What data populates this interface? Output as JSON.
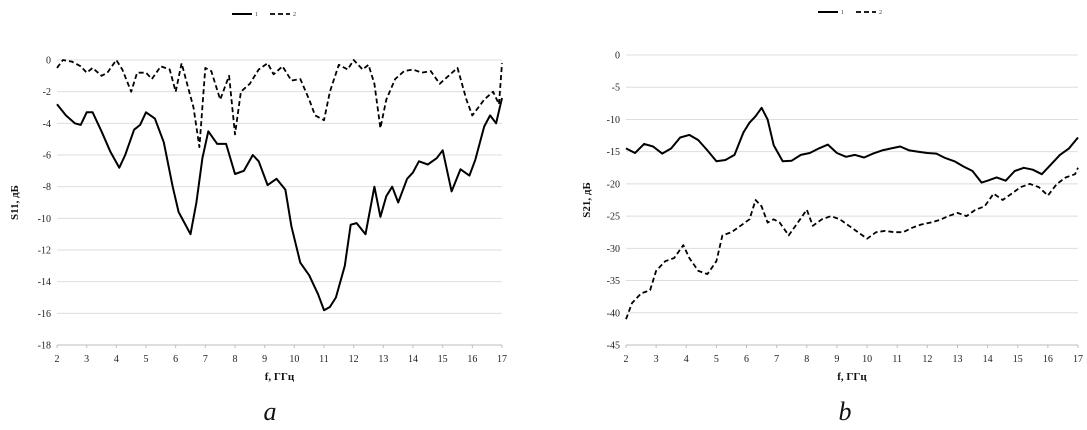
{
  "chart_data": [
    {
      "type": "line",
      "panel_label": "a",
      "xlabel": "f, ГГц",
      "ylabel": "S11, дБ",
      "xlim": [
        2,
        17
      ],
      "ylim": [
        -18,
        0
      ],
      "xticks": [
        "2",
        "3",
        "4",
        "5",
        "6",
        "7",
        "8",
        "9",
        "10",
        "11",
        "12",
        "13",
        "14",
        "15",
        "16",
        "17"
      ],
      "yticks": [
        "0",
        "-2",
        "-4",
        "-6",
        "-8",
        "-10",
        "-12",
        "-14",
        "-16",
        "-18"
      ],
      "grid": true,
      "legend_position": "top",
      "series": [
        {
          "name": "1",
          "style": "solid",
          "x": [
            2.0,
            2.3,
            2.6,
            2.8,
            3.0,
            3.2,
            3.5,
            3.8,
            4.1,
            4.3,
            4.6,
            4.8,
            5.0,
            5.3,
            5.6,
            5.9,
            6.1,
            6.3,
            6.5,
            6.7,
            6.9,
            7.1,
            7.4,
            7.7,
            8.0,
            8.3,
            8.6,
            8.8,
            9.1,
            9.4,
            9.7,
            9.9,
            10.2,
            10.5,
            10.8,
            11.0,
            11.2,
            11.4,
            11.7,
            11.9,
            12.1,
            12.4,
            12.7,
            12.9,
            13.1,
            13.3,
            13.5,
            13.8,
            14.0,
            14.2,
            14.5,
            14.8,
            15.0,
            15.3,
            15.6,
            15.9,
            16.1,
            16.4,
            16.6,
            16.8,
            17.0
          ],
          "values": [
            -2.8,
            -3.5,
            -4.0,
            -4.1,
            -3.3,
            -3.3,
            -4.5,
            -5.8,
            -6.8,
            -6.0,
            -4.4,
            -4.1,
            -3.3,
            -3.7,
            -5.2,
            -8.0,
            -9.6,
            -10.3,
            -11.0,
            -9.0,
            -6.2,
            -4.5,
            -5.3,
            -5.3,
            -7.2,
            -7.0,
            -6.0,
            -6.4,
            -7.9,
            -7.5,
            -8.2,
            -10.5,
            -12.8,
            -13.6,
            -14.8,
            -15.8,
            -15.6,
            -15.0,
            -13.0,
            -10.4,
            -10.3,
            -11.0,
            -8.0,
            -9.9,
            -8.6,
            -8.0,
            -9.0,
            -7.5,
            -7.1,
            -6.4,
            -6.6,
            -6.2,
            -5.7,
            -8.3,
            -6.9,
            -7.3,
            -6.3,
            -4.2,
            -3.5,
            -4.0,
            -2.4
          ]
        },
        {
          "name": "2",
          "style": "dashed",
          "x": [
            2.0,
            2.2,
            2.5,
            2.8,
            3.0,
            3.2,
            3.5,
            3.7,
            4.0,
            4.2,
            4.5,
            4.7,
            5.0,
            5.2,
            5.5,
            5.8,
            6.0,
            6.2,
            6.4,
            6.6,
            6.8,
            7.0,
            7.2,
            7.5,
            7.8,
            8.0,
            8.2,
            8.5,
            8.8,
            9.1,
            9.3,
            9.6,
            9.9,
            10.2,
            10.5,
            10.7,
            11.0,
            11.2,
            11.5,
            11.8,
            12.0,
            12.3,
            12.5,
            12.7,
            12.9,
            13.1,
            13.4,
            13.7,
            14.0,
            14.3,
            14.6,
            14.9,
            15.2,
            15.5,
            15.8,
            16.0,
            16.2,
            16.4,
            16.7,
            16.9,
            17.0
          ],
          "values": [
            -0.5,
            0.0,
            -0.1,
            -0.4,
            -0.8,
            -0.5,
            -1.0,
            -0.8,
            0.0,
            -0.6,
            -2.0,
            -0.8,
            -0.8,
            -1.2,
            -0.4,
            -0.6,
            -2.0,
            -0.2,
            -1.6,
            -3.0,
            -5.5,
            -0.5,
            -0.7,
            -2.5,
            -1.0,
            -4.7,
            -2.0,
            -1.5,
            -0.6,
            -0.2,
            -0.9,
            -0.4,
            -1.3,
            -1.2,
            -2.5,
            -3.5,
            -3.8,
            -2.0,
            -0.3,
            -0.6,
            -0.0,
            -0.6,
            -0.3,
            -1.5,
            -4.3,
            -2.5,
            -1.2,
            -0.7,
            -0.6,
            -0.8,
            -0.7,
            -1.5,
            -1.0,
            -0.5,
            -2.5,
            -3.5,
            -3.0,
            -2.5,
            -2.0,
            -2.8,
            -0.2
          ]
        }
      ]
    },
    {
      "type": "line",
      "panel_label": "b",
      "xlabel": "f, ГГц",
      "ylabel": "S21, дБ",
      "xlim": [
        2,
        17
      ],
      "ylim": [
        -45,
        0
      ],
      "xticks": [
        "2",
        "3",
        "4",
        "5",
        "6",
        "7",
        "8",
        "9",
        "10",
        "11",
        "12",
        "13",
        "14",
        "15",
        "16",
        "17"
      ],
      "yticks": [
        "0",
        "-5",
        "-10",
        "-15",
        "-20",
        "-25",
        "-30",
        "-35",
        "-40",
        "-45"
      ],
      "grid": true,
      "legend_position": "top",
      "series": [
        {
          "name": "1",
          "style": "solid",
          "x": [
            2.0,
            2.3,
            2.6,
            2.9,
            3.2,
            3.5,
            3.8,
            4.1,
            4.4,
            4.7,
            5.0,
            5.3,
            5.6,
            5.9,
            6.1,
            6.3,
            6.5,
            6.7,
            6.9,
            7.2,
            7.5,
            7.8,
            8.1,
            8.4,
            8.7,
            9.0,
            9.3,
            9.6,
            9.9,
            10.2,
            10.5,
            10.8,
            11.1,
            11.4,
            11.7,
            12.0,
            12.3,
            12.6,
            12.9,
            13.2,
            13.5,
            13.8,
            14.0,
            14.3,
            14.6,
            14.9,
            15.2,
            15.5,
            15.8,
            16.1,
            16.4,
            16.7,
            17.0
          ],
          "values": [
            -14.5,
            -15.2,
            -13.8,
            -14.2,
            -15.3,
            -14.5,
            -12.8,
            -12.4,
            -13.2,
            -14.8,
            -16.5,
            -16.3,
            -15.5,
            -12.0,
            -10.5,
            -9.5,
            -8.2,
            -10.0,
            -14.0,
            -16.5,
            -16.4,
            -15.5,
            -15.2,
            -14.5,
            -13.9,
            -15.2,
            -15.8,
            -15.5,
            -15.9,
            -15.3,
            -14.8,
            -14.5,
            -14.2,
            -14.8,
            -15.0,
            -15.2,
            -15.3,
            -16.0,
            -16.5,
            -17.3,
            -18.0,
            -19.8,
            -19.5,
            -19.0,
            -19.5,
            -18.0,
            -17.5,
            -17.8,
            -18.5,
            -17.0,
            -15.5,
            -14.5,
            -12.8
          ]
        },
        {
          "name": "2",
          "style": "dashed",
          "x": [
            2.0,
            2.2,
            2.5,
            2.8,
            3.0,
            3.3,
            3.6,
            3.9,
            4.1,
            4.4,
            4.7,
            5.0,
            5.2,
            5.5,
            5.8,
            6.1,
            6.3,
            6.5,
            6.7,
            6.9,
            7.1,
            7.4,
            7.7,
            8.0,
            8.2,
            8.5,
            8.8,
            9.1,
            9.4,
            9.7,
            10.0,
            10.3,
            10.6,
            10.9,
            11.2,
            11.5,
            11.8,
            12.1,
            12.4,
            12.7,
            13.0,
            13.3,
            13.6,
            13.9,
            14.2,
            14.5,
            14.8,
            15.1,
            15.4,
            15.7,
            16.0,
            16.3,
            16.6,
            16.9,
            17.0
          ],
          "values": [
            -41.0,
            -38.5,
            -37.0,
            -36.5,
            -33.5,
            -32.0,
            -31.5,
            -29.5,
            -31.5,
            -33.5,
            -34.0,
            -32.0,
            -28.0,
            -27.5,
            -26.5,
            -25.5,
            -22.5,
            -23.5,
            -26.0,
            -25.5,
            -26.0,
            -28.0,
            -26.0,
            -24.0,
            -26.5,
            -25.5,
            -25.0,
            -25.5,
            -26.5,
            -27.5,
            -28.5,
            -27.5,
            -27.3,
            -27.5,
            -27.5,
            -26.8,
            -26.3,
            -26.0,
            -25.6,
            -25.0,
            -24.5,
            -25.0,
            -24.0,
            -23.5,
            -21.5,
            -22.5,
            -21.5,
            -20.5,
            -20.0,
            -20.5,
            -21.8,
            -20.0,
            -19.0,
            -18.5,
            -17.5
          ]
        }
      ]
    }
  ]
}
